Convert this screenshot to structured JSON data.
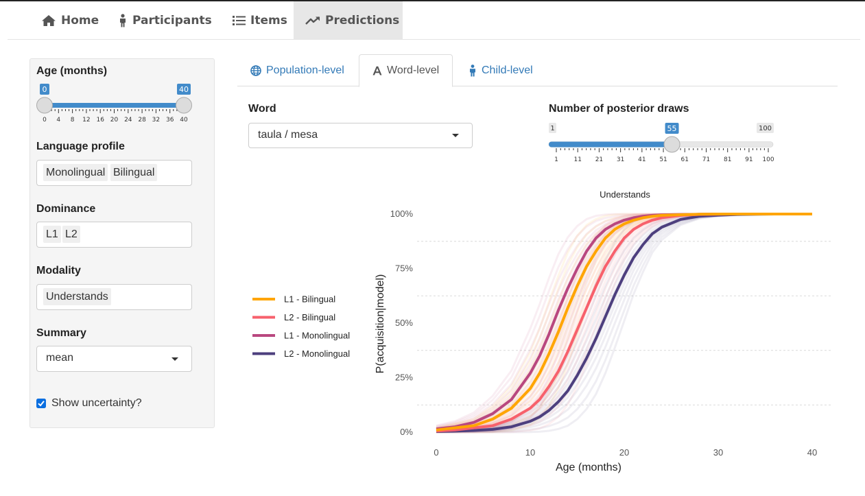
{
  "nav": {
    "items": [
      {
        "label": "Home",
        "icon": "home-icon"
      },
      {
        "label": "Participants",
        "icon": "person-icon"
      },
      {
        "label": "Items",
        "icon": "list-icon"
      },
      {
        "label": "Predictions",
        "icon": "trend-icon"
      }
    ],
    "active": "Predictions"
  },
  "sidebar": {
    "age": {
      "label": "Age (months)",
      "min": 0,
      "max": 40,
      "min_badge": "0",
      "max_badge": "40",
      "ticks": [
        "0",
        "4",
        "8",
        "12",
        "16",
        "20",
        "24",
        "28",
        "32",
        "36",
        "40"
      ]
    },
    "language_profile": {
      "label": "Language profile",
      "chips": [
        "Monolingual",
        "Bilingual"
      ]
    },
    "dominance": {
      "label": "Dominance",
      "chips": [
        "L1",
        "L2"
      ]
    },
    "modality": {
      "label": "Modality",
      "chips": [
        "Understands"
      ]
    },
    "summary": {
      "label": "Summary",
      "value": "mean"
    },
    "uncertainty": {
      "label": "Show uncertainty?",
      "checked": true
    }
  },
  "tabs": [
    {
      "label": "Population-level",
      "icon": "globe-icon"
    },
    {
      "label": "Word-level",
      "icon": "font-icon"
    },
    {
      "label": "Child-level",
      "icon": "child-icon"
    }
  ],
  "word": {
    "label": "Word",
    "value": "taula / mesa"
  },
  "draws": {
    "label": "Number of posterior draws",
    "min": 1,
    "max": 100,
    "value": 55,
    "min_badge": "1",
    "value_badge": "55",
    "max_badge": "100",
    "ticks": [
      "1",
      "11",
      "21",
      "31",
      "41",
      "51",
      "61",
      "71",
      "81",
      "91",
      "100"
    ]
  },
  "colors": {
    "accent": "#428bca",
    "l1_bilingual": "#ffa500",
    "l2_bilingual": "#f7616c",
    "l1_monolingual": "#b9477f",
    "l2_monolingual": "#4d3f7e"
  },
  "chart_data": {
    "type": "line",
    "title": "Understands",
    "xlabel": "Age (months)",
    "ylabel": "P(acquisition|model)",
    "xlim": [
      0,
      40
    ],
    "ylim": [
      0,
      1
    ],
    "x_ticks": [
      "0",
      "10",
      "20",
      "30",
      "40"
    ],
    "y_ticks": [
      "0%",
      "25%",
      "50%",
      "75%",
      "100%"
    ],
    "legend_position": "left",
    "grid": true,
    "x": [
      0,
      2,
      4,
      6,
      8,
      10,
      11,
      12,
      13,
      14,
      15,
      16,
      17,
      18,
      19,
      20,
      21,
      22,
      23,
      24,
      26,
      28,
      30,
      32,
      34,
      36,
      38,
      40
    ],
    "series": [
      {
        "name": "L1 - Bilingual",
        "color": "#ffa500",
        "values": [
          0.01,
          0.02,
          0.03,
          0.06,
          0.11,
          0.2,
          0.27,
          0.36,
          0.46,
          0.57,
          0.67,
          0.76,
          0.83,
          0.89,
          0.93,
          0.955,
          0.972,
          0.983,
          0.99,
          0.994,
          0.997,
          0.999,
          1.0,
          1.0,
          1.0,
          1.0,
          1.0,
          1.0
        ]
      },
      {
        "name": "L2 - Bilingual",
        "color": "#f7616c",
        "values": [
          0.005,
          0.01,
          0.02,
          0.03,
          0.06,
          0.11,
          0.15,
          0.21,
          0.28,
          0.37,
          0.47,
          0.57,
          0.67,
          0.76,
          0.83,
          0.89,
          0.93,
          0.955,
          0.972,
          0.983,
          0.994,
          0.998,
          0.999,
          1.0,
          1.0,
          1.0,
          1.0,
          1.0
        ]
      },
      {
        "name": "L1 - Monolingual",
        "color": "#b9477f",
        "values": [
          0.015,
          0.025,
          0.045,
          0.085,
          0.15,
          0.27,
          0.35,
          0.45,
          0.56,
          0.66,
          0.75,
          0.83,
          0.89,
          0.93,
          0.955,
          0.972,
          0.983,
          0.99,
          0.994,
          0.996,
          0.998,
          0.999,
          1.0,
          1.0,
          1.0,
          1.0,
          1.0,
          1.0
        ]
      },
      {
        "name": "L2 - Monolingual",
        "color": "#4d3f7e",
        "values": [
          0.003,
          0.005,
          0.008,
          0.013,
          0.025,
          0.05,
          0.07,
          0.1,
          0.14,
          0.19,
          0.26,
          0.34,
          0.43,
          0.53,
          0.63,
          0.72,
          0.8,
          0.86,
          0.91,
          0.94,
          0.975,
          0.99,
          0.995,
          0.998,
          0.999,
          1.0,
          1.0,
          1.0
        ]
      }
    ]
  }
}
